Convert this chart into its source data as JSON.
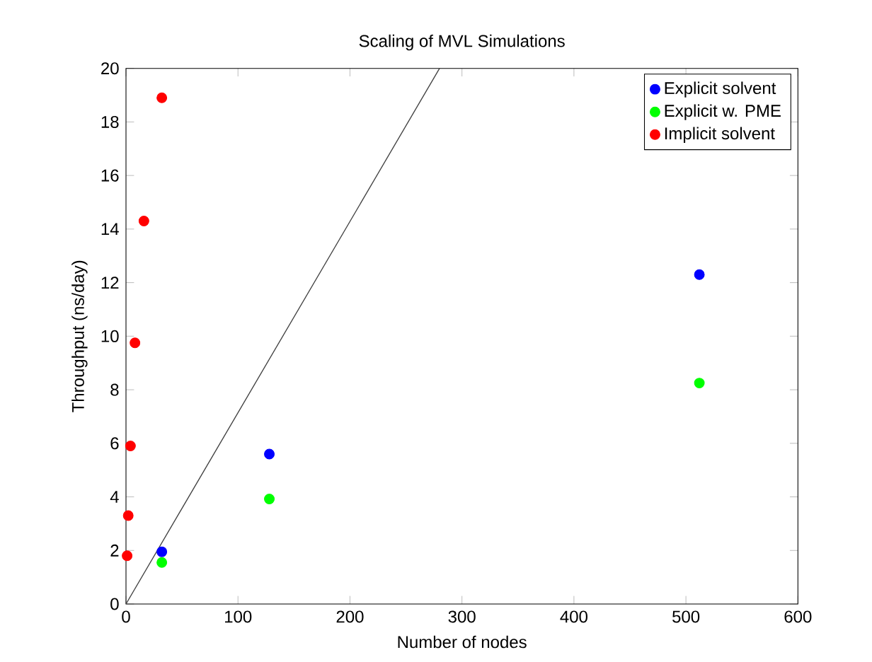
{
  "chart_data": {
    "type": "scatter",
    "title": "Scaling of MVL Simulations",
    "xlabel": "Number of nodes",
    "ylabel": "Throughput (ns/day)",
    "xlim": [
      0,
      600
    ],
    "ylim": [
      0,
      20
    ],
    "xticks": [
      0,
      100,
      200,
      300,
      400,
      500,
      600
    ],
    "yticks": [
      0,
      2,
      4,
      6,
      8,
      10,
      12,
      14,
      16,
      18,
      20
    ],
    "grid": false,
    "legend": "top right",
    "series": [
      {
        "name": "Explicit solvent",
        "marker": "circle",
        "color": "#0000ff",
        "x": [
          32,
          128,
          512
        ],
        "values": [
          1.95,
          5.6,
          12.3
        ]
      },
      {
        "name": "Explicit w. PME",
        "marker": "circle",
        "color": "#00ff00",
        "x": [
          32,
          128,
          512
        ],
        "values": [
          1.55,
          3.92,
          8.25
        ]
      },
      {
        "name": "Implicit solvent",
        "marker": "circle",
        "color": "#ff0000",
        "x": [
          1,
          2,
          4,
          8,
          16,
          32
        ],
        "values": [
          1.8,
          3.3,
          5.9,
          9.75,
          14.3,
          18.9
        ]
      },
      {
        "type": "line",
        "marker": "none",
        "color": "#404040",
        "x": [
          0,
          280
        ],
        "values": [
          0,
          20
        ]
      }
    ]
  }
}
